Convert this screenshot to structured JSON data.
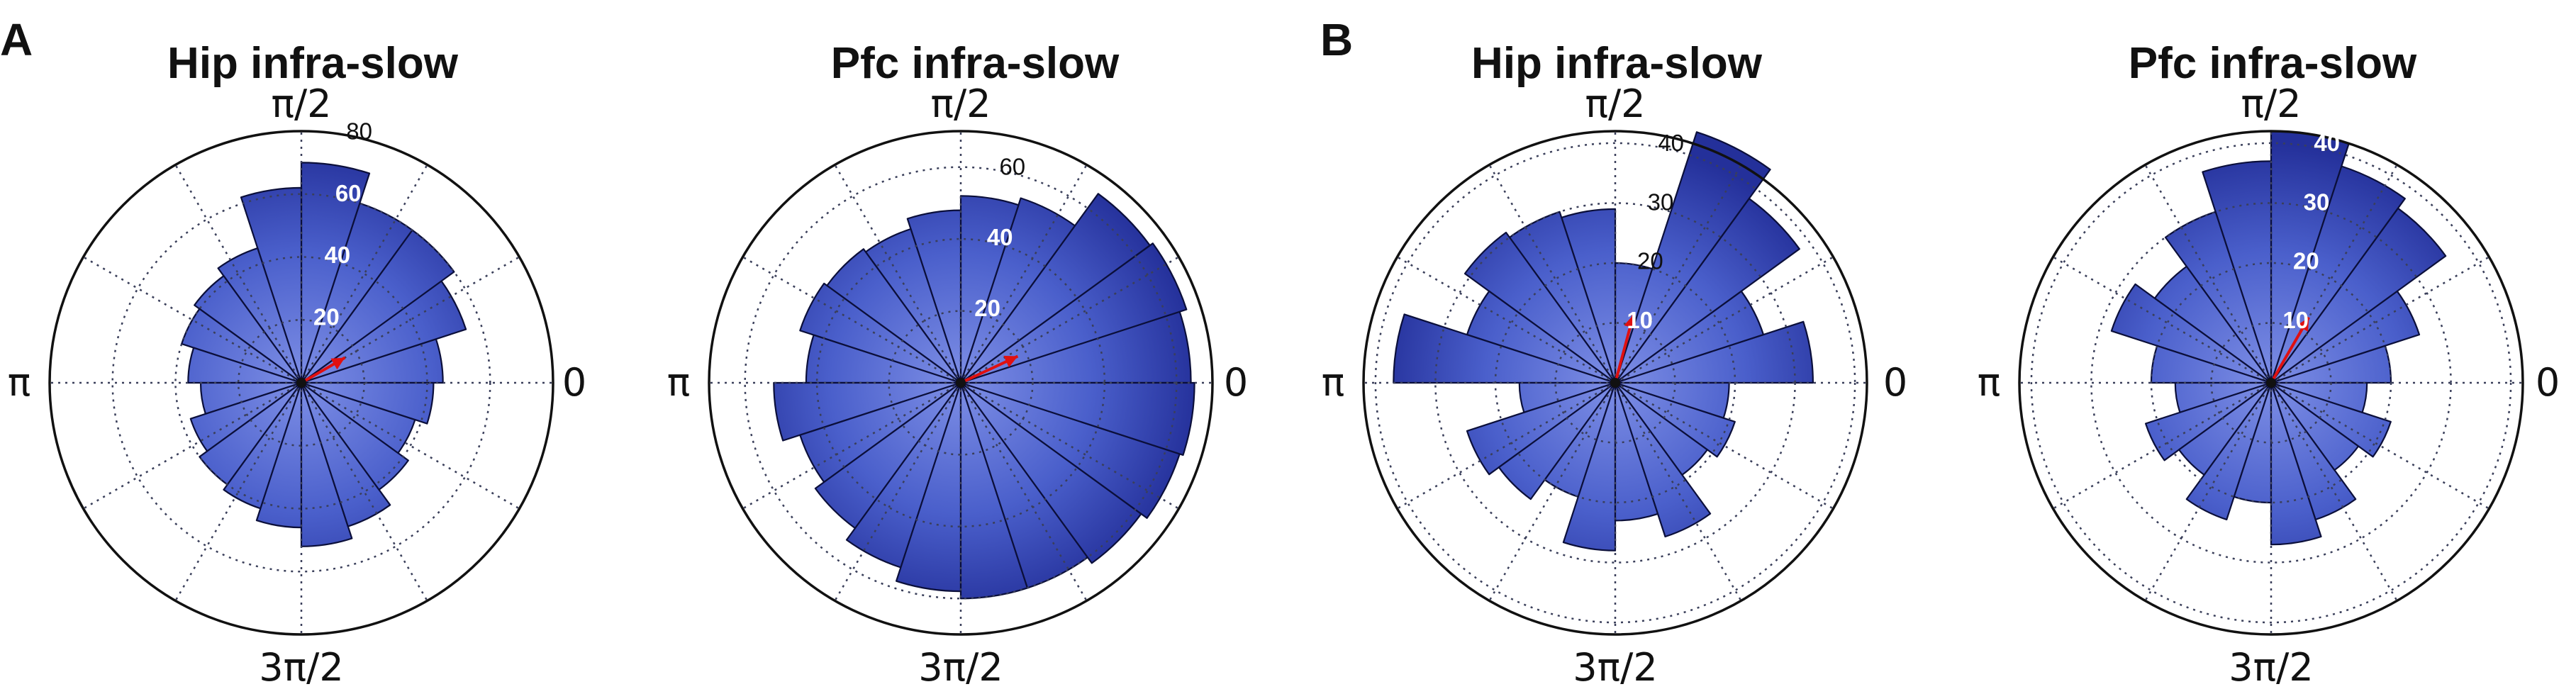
{
  "panels": [
    {
      "letter": "A"
    },
    {
      "letter": "B"
    }
  ],
  "chart_data": [
    {
      "type": "rose",
      "panel": "A",
      "title": "Hip infra-slow",
      "angle_labels": {
        "right": "0",
        "top": "π/2",
        "left": "π",
        "bottom": "3π/2"
      },
      "rmax": 80,
      "rings": [
        20,
        40,
        60,
        80
      ],
      "ring_labels": [
        "20",
        "40",
        "60",
        "80"
      ],
      "bins": 20,
      "values": [
        45,
        55,
        60,
        60,
        70,
        62,
        45,
        42,
        40,
        36,
        32,
        37,
        40,
        42,
        46,
        52,
        48,
        42,
        38,
        42
      ],
      "mean_vector": {
        "angle_deg": 30,
        "length": 0.2
      }
    },
    {
      "type": "rose",
      "panel": "A",
      "title": "Pfc infra-slow",
      "angle_labels": {
        "right": "0",
        "top": "π/2",
        "left": "π",
        "bottom": "3π/2"
      },
      "rmax": 70,
      "rings": [
        20,
        40,
        60
      ],
      "ring_labels": [
        "20",
        "40",
        "60"
      ],
      "bins": 20,
      "values": [
        64,
        66,
        65,
        54,
        52,
        48,
        45,
        46,
        47,
        43,
        52,
        47,
        50,
        54,
        58,
        60,
        60,
        62,
        64,
        65
      ],
      "mean_vector": {
        "angle_deg": 25,
        "length": 0.25
      }
    },
    {
      "type": "rose",
      "panel": "B",
      "title": "Hip infra-slow",
      "angle_labels": {
        "right": "0",
        "top": "π/2",
        "left": "π",
        "bottom": "3π/2"
      },
      "rmax": 42,
      "rings": [
        10,
        20,
        30,
        40
      ],
      "ring_labels": [
        "10",
        "20",
        "30",
        "40"
      ],
      "bins": 20,
      "values": [
        33,
        26,
        38,
        44,
        20,
        29,
        30,
        31,
        26,
        37,
        16,
        26,
        24,
        20,
        28,
        23,
        27,
        19,
        21,
        19
      ],
      "mean_vector": {
        "angle_deg": 75,
        "length": 0.28
      }
    },
    {
      "type": "rose",
      "panel": "B",
      "title": "Pfc infra-slow",
      "angle_labels": {
        "right": "0",
        "top": "π/2",
        "left": "π",
        "bottom": "3π/2"
      },
      "rmax": 42,
      "rings": [
        10,
        20,
        30,
        40
      ],
      "ring_labels": [
        "10",
        "20",
        "30",
        "40"
      ],
      "bins": 20,
      "values": [
        20,
        26,
        36,
        38,
        42,
        37,
        30,
        24,
        28,
        20,
        16,
        22,
        19,
        24,
        20,
        27,
        24,
        18,
        21,
        16
      ],
      "mean_vector": {
        "angle_deg": 60,
        "length": 0.3
      }
    }
  ]
}
